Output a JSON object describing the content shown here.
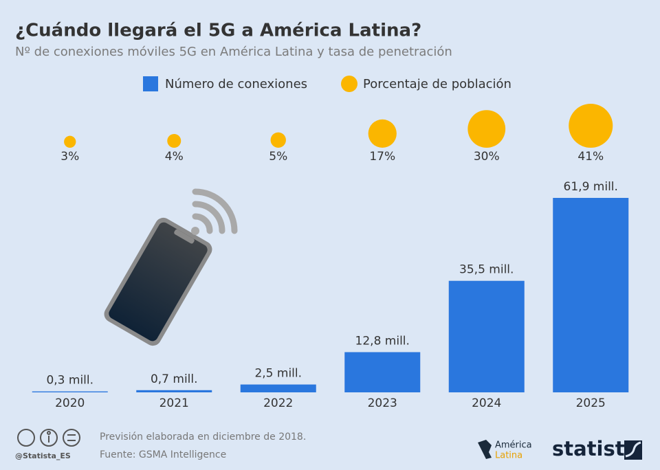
{
  "chart_data": {
    "type": "bar",
    "title": "¿Cuándo llegará el 5G a América Latina?",
    "subtitle": "Nº de conexiones móviles 5G en América Latina y tasa de penetración",
    "categories": [
      "2020",
      "2021",
      "2022",
      "2023",
      "2024",
      "2025"
    ],
    "series": [
      {
        "name": "Número de conexiones",
        "type": "bar",
        "color": "#2a77de",
        "values": [
          0.3,
          0.7,
          2.5,
          12.8,
          35.5,
          61.9
        ],
        "value_labels": [
          "0,3 mill.",
          "0,7 mill.",
          "2,5 mill.",
          "12,8 mill.",
          "35,5 mill.",
          "61,9 mill."
        ]
      },
      {
        "name": "Porcentaje de población",
        "type": "bubble",
        "color": "#fbb600",
        "values": [
          3,
          4,
          5,
          17,
          30,
          41
        ],
        "value_labels": [
          "3%",
          "4%",
          "5%",
          "17%",
          "30%",
          "41%"
        ]
      }
    ],
    "note": "Previsión elaborada en diciembre de 2018.",
    "source": "Fuente: GSMA Intelligence",
    "credit": "@Statista_ES",
    "logos": [
      "América",
      "Latina",
      "statista"
    ]
  }
}
